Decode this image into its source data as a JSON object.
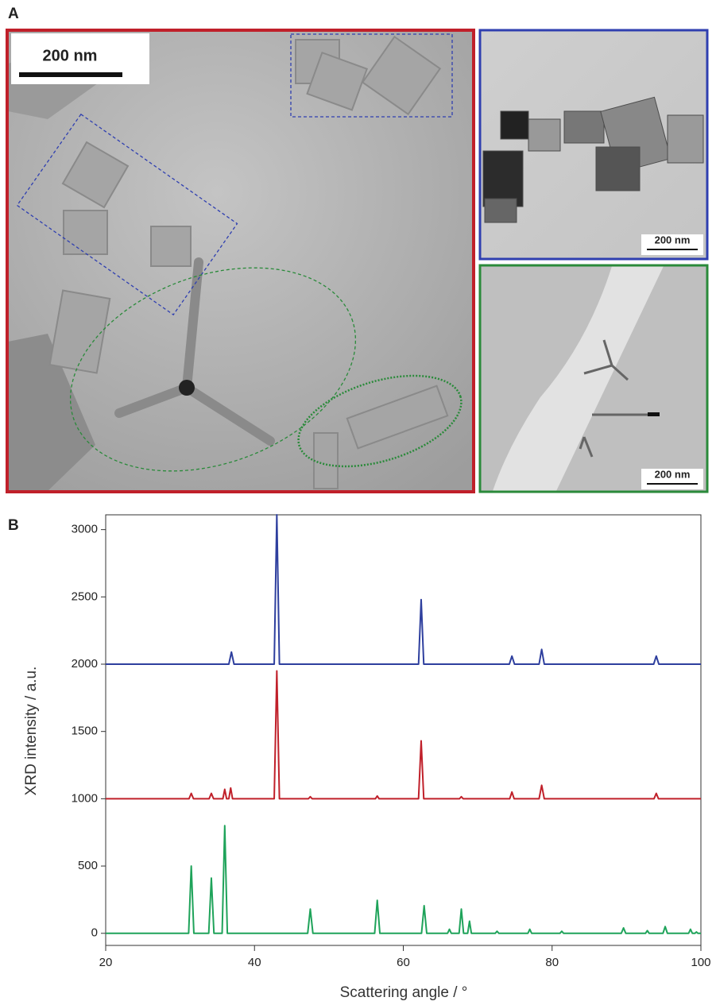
{
  "panels": {
    "a": {
      "label": "A",
      "scale_bars": [
        "200 nm",
        "200 nm",
        "200 nm"
      ]
    },
    "b": {
      "label": "B"
    }
  },
  "chart_data": {
    "type": "line",
    "xlabel": "Scattering angle / °",
    "ylabel": "XRD intensity / a.u.",
    "xlim": [
      20,
      100
    ],
    "xticks": [
      20,
      40,
      60,
      80,
      100
    ],
    "ylim": [
      -90,
      3110
    ],
    "yticks": [
      0,
      500,
      1000,
      1500,
      2000,
      2500,
      3000
    ],
    "series": [
      {
        "color": "#2e3f9e",
        "x": [
          20,
          36.55,
          36.9,
          37.25,
          42.65,
          43.0,
          43.35,
          62.05,
          62.4,
          62.75,
          74.25,
          74.6,
          74.95,
          78.25,
          78.6,
          78.95,
          93.65,
          94.0,
          94.35,
          100
        ],
        "values": [
          2000,
          2000,
          2090,
          2000,
          2000,
          3110,
          2000,
          2000,
          2480,
          2000,
          2000,
          2060,
          2000,
          2000,
          2110,
          2000,
          2000,
          2060,
          2000,
          2000
        ]
      },
      {
        "color": "#c0202a",
        "x": [
          20,
          31.2,
          31.5,
          31.8,
          33.9,
          34.2,
          34.5,
          35.75,
          36.0,
          36.25,
          36.55,
          36.8,
          37.05,
          42.65,
          43.0,
          43.35,
          47.25,
          47.5,
          47.75,
          56.25,
          56.5,
          56.75,
          62.05,
          62.4,
          62.75,
          67.55,
          67.8,
          68.05,
          74.3,
          74.6,
          74.9,
          78.25,
          78.6,
          78.95,
          93.7,
          94.0,
          94.3,
          100
        ],
        "values": [
          1000,
          1000,
          1040,
          1000,
          1000,
          1040,
          1000,
          1000,
          1070,
          1000,
          1000,
          1080,
          1000,
          1000,
          1950,
          1000,
          1000,
          1015,
          1000,
          1000,
          1020,
          1000,
          1000,
          1430,
          1000,
          1000,
          1015,
          1000,
          1000,
          1050,
          1000,
          1000,
          1100,
          1000,
          1000,
          1040,
          1000,
          1000
        ]
      },
      {
        "color": "#1fa35a",
        "x": [
          20,
          31.15,
          31.5,
          31.85,
          33.85,
          34.2,
          34.55,
          35.65,
          36.0,
          36.35,
          47.15,
          47.5,
          47.85,
          56.15,
          56.5,
          56.85,
          62.45,
          62.8,
          63.15,
          65.95,
          66.2,
          66.45,
          67.5,
          67.8,
          68.1,
          68.65,
          68.9,
          69.15,
          72.35,
          72.6,
          72.85,
          76.75,
          77.0,
          77.25,
          81.05,
          81.3,
          81.55,
          89.3,
          89.6,
          89.9,
          92.55,
          92.8,
          93.05,
          94.9,
          95.2,
          95.5,
          98.35,
          98.6,
          98.85,
          99.2,
          99.4,
          99.6,
          100
        ],
        "values": [
          0,
          0,
          500,
          0,
          0,
          410,
          0,
          0,
          800,
          0,
          0,
          180,
          0,
          0,
          245,
          0,
          0,
          205,
          0,
          0,
          30,
          0,
          0,
          180,
          0,
          0,
          90,
          0,
          0,
          15,
          0,
          0,
          30,
          0,
          0,
          15,
          0,
          0,
          40,
          0,
          0,
          20,
          0,
          0,
          50,
          0,
          0,
          30,
          0,
          0,
          10,
          0,
          0
        ]
      }
    ]
  }
}
